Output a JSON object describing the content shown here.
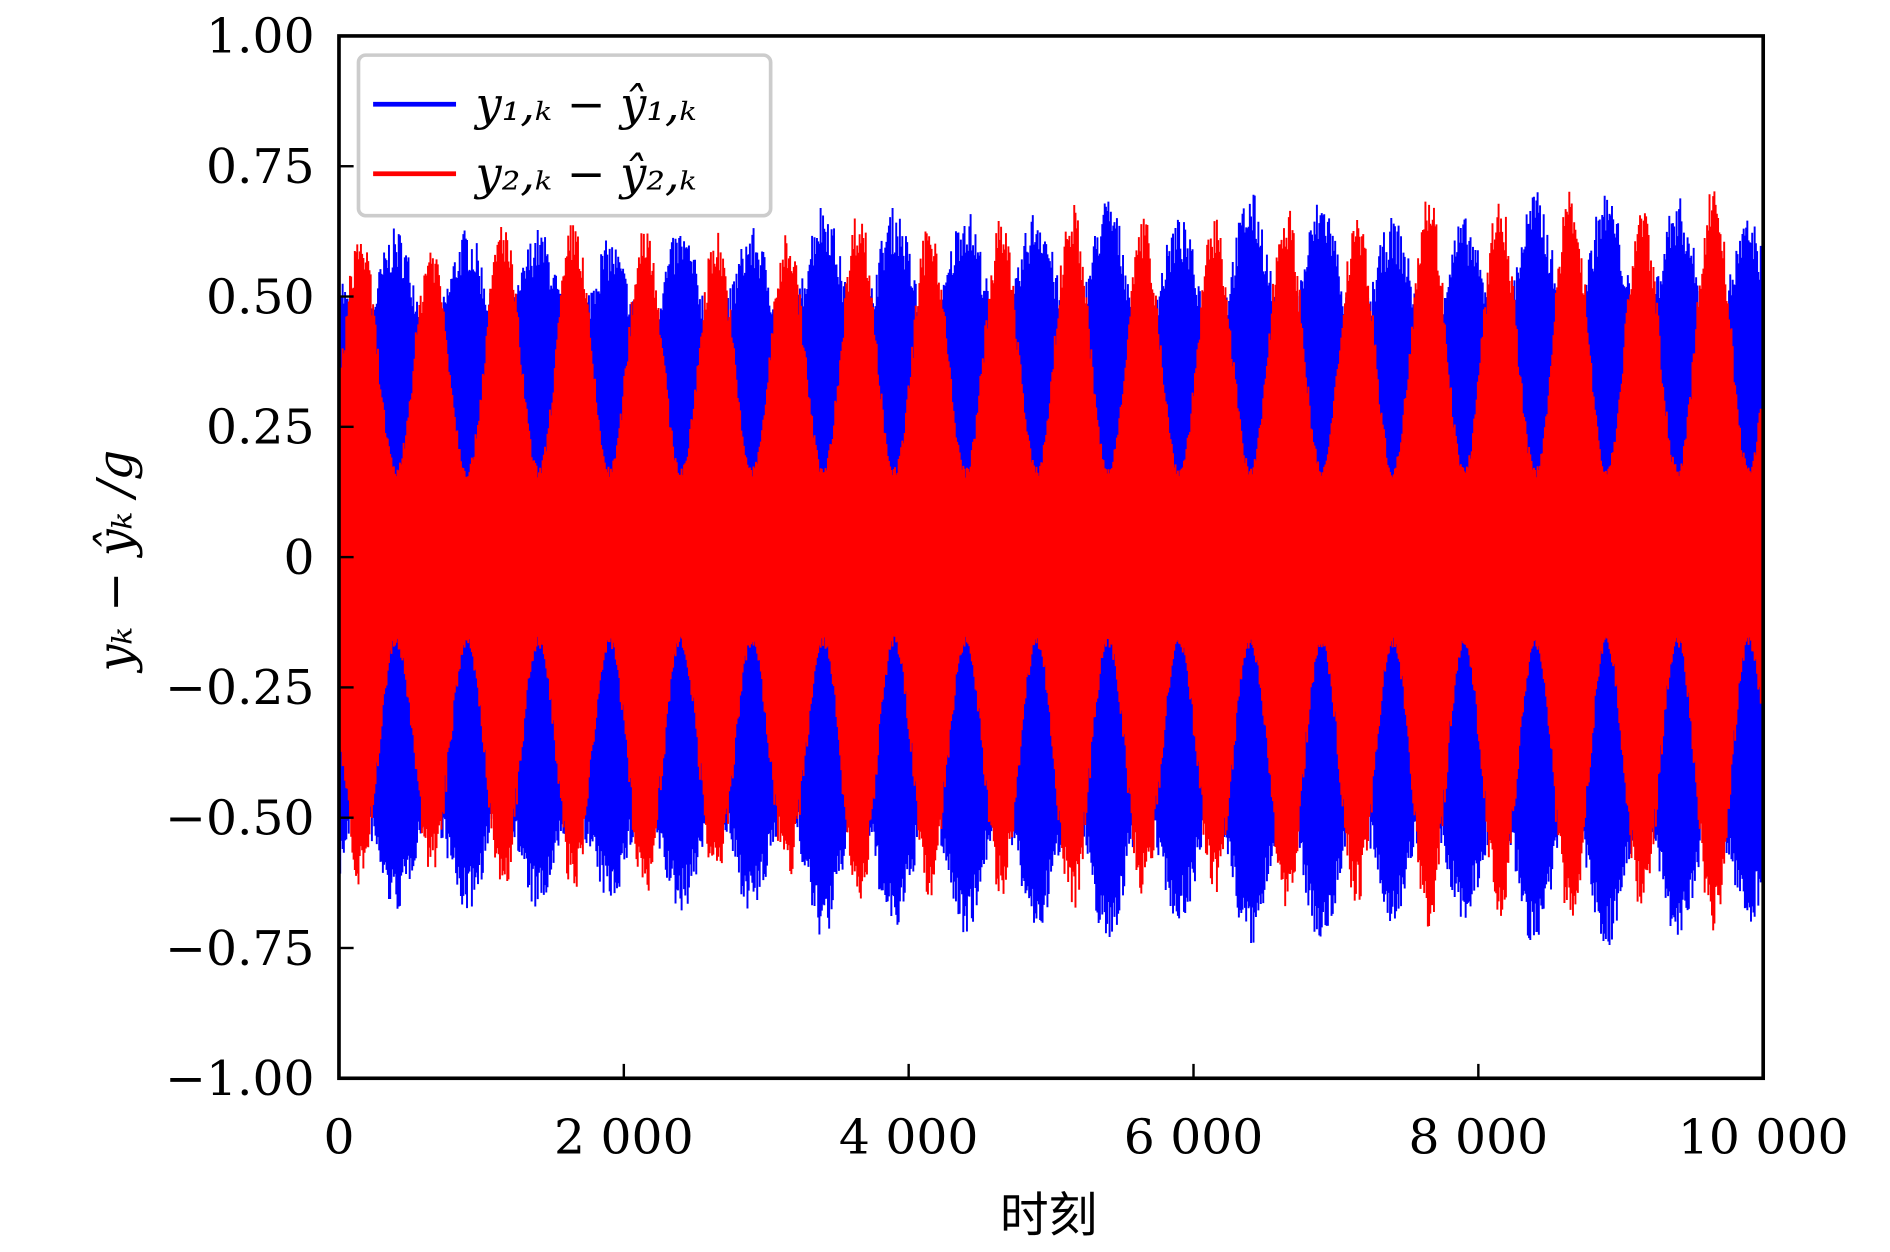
{
  "chart_data": {
    "type": "line",
    "title": "",
    "xlabel": "时刻",
    "ylabel": "yₖ − ŷₖ /g",
    "xlim": [
      0,
      10000
    ],
    "ylim": [
      -1.0,
      1.0
    ],
    "grid": false,
    "legend_position": "top-left",
    "x_ticks": [
      "0",
      "2 000",
      "4 000",
      "6 000",
      "8 000",
      "10 000"
    ],
    "x_tick_values": [
      0,
      2000,
      4000,
      6000,
      8000,
      10000
    ],
    "y_ticks": [
      "1.00",
      "0.75",
      "0.50",
      "0.25",
      "0",
      "−0.25",
      "−0.50",
      "−0.75",
      "−1.00"
    ],
    "y_tick_values": [
      1.0,
      0.75,
      0.5,
      0.25,
      0,
      -0.25,
      -0.5,
      -0.75,
      -1.0
    ],
    "envelope_x": [
      150,
      400,
      650,
      900,
      1150,
      1400,
      1650,
      1900,
      2150,
      2400,
      2650,
      2900,
      3150,
      3400,
      3650,
      3900,
      4150,
      4400,
      4650,
      4900,
      5150,
      5400,
      5650,
      5900,
      6150,
      6400,
      6650,
      6900,
      7150,
      7400,
      7650,
      7900,
      8150,
      8400,
      8650,
      8900,
      9150,
      9400,
      9650,
      9900
    ],
    "series": [
      {
        "name": "y₁,ₖ − ŷ₁,ₖ",
        "color": "#0000ff",
        "envelope_amplitude": [
          0.45,
          0.62,
          0.45,
          0.62,
          0.45,
          0.62,
          0.45,
          0.6,
          0.45,
          0.62,
          0.45,
          0.62,
          0.45,
          0.67,
          0.45,
          0.66,
          0.45,
          0.66,
          0.45,
          0.66,
          0.45,
          0.68,
          0.45,
          0.64,
          0.45,
          0.69,
          0.45,
          0.68,
          0.45,
          0.64,
          0.45,
          0.64,
          0.45,
          0.69,
          0.45,
          0.69,
          0.45,
          0.68,
          0.45,
          0.64
        ]
      },
      {
        "name": "y₂,ₖ − ŷ₂,ₖ",
        "color": "#ff0000",
        "envelope_amplitude": [
          0.6,
          0.15,
          0.58,
          0.15,
          0.62,
          0.15,
          0.62,
          0.15,
          0.62,
          0.15,
          0.6,
          0.15,
          0.6,
          0.15,
          0.64,
          0.15,
          0.62,
          0.15,
          0.62,
          0.15,
          0.65,
          0.15,
          0.62,
          0.15,
          0.62,
          0.15,
          0.65,
          0.15,
          0.64,
          0.15,
          0.68,
          0.15,
          0.66,
          0.15,
          0.68,
          0.15,
          0.65,
          0.15,
          0.69,
          0.15
        ]
      }
    ]
  }
}
